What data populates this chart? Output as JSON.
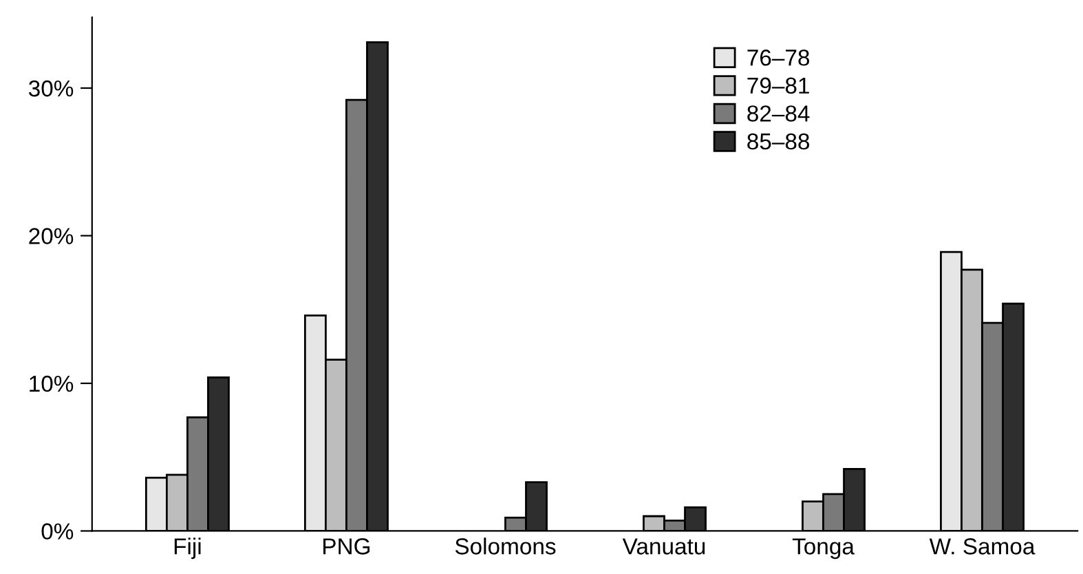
{
  "chart_data": {
    "type": "bar",
    "categories": [
      "Fiji",
      "PNG",
      "Solomons",
      "Vanuatu",
      "Tonga",
      "W. Samoa"
    ],
    "series": [
      {
        "name": "76–78",
        "color": "#e6e6e6",
        "values": [
          3.6,
          14.6,
          null,
          null,
          null,
          18.9
        ]
      },
      {
        "name": "79–81",
        "color": "#bdbdbd",
        "values": [
          3.8,
          11.6,
          null,
          1.0,
          2.0,
          17.7
        ]
      },
      {
        "name": "82–84",
        "color": "#7a7a7a",
        "values": [
          7.7,
          29.2,
          0.9,
          0.7,
          2.5,
          14.1
        ]
      },
      {
        "name": "85–88",
        "color": "#2e2e2e",
        "values": [
          10.4,
          33.1,
          3.3,
          1.6,
          4.2,
          15.4
        ]
      }
    ],
    "ylim": [
      0,
      34.8
    ],
    "yticks": [
      {
        "value": 0,
        "label": "0%"
      },
      {
        "value": 10,
        "label": "10%"
      },
      {
        "value": 20,
        "label": "20%"
      },
      {
        "value": 30,
        "label": "30%"
      }
    ],
    "grid": false,
    "legend": "top"
  }
}
